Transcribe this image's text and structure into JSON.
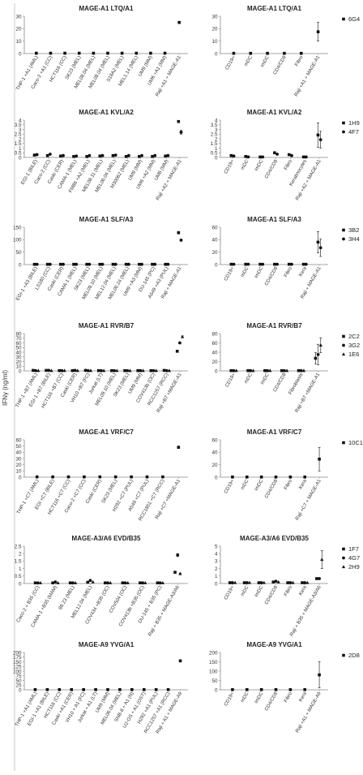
{
  "figure": {
    "ylabel": "IFNγ (ng/ml)"
  },
  "chart_data": [
    {
      "type": "scatter",
      "title": "MAGE-A1 LTQ/A1",
      "ylim": [
        0,
        30
      ],
      "yticks": [
        0,
        10,
        20,
        30
      ],
      "categories": [
        "THP-1 +A1 (AML)",
        "Caco-2 +A1 (CC)",
        "HCT116 (CC)",
        "SK23 (MEL)",
        "MEL08.04 (MEL)",
        "MEL08.04 (MEL)",
        "S18A2 (MEL)",
        "MEL1.14 (MEL)",
        "UM9 (MM)",
        "UM6 +A1 (MM)",
        "Raji +A1 + MAGE-A1"
      ],
      "series": [
        {
          "name": "6G4",
          "marker": "square",
          "values": [
            0.3,
            0.3,
            0.3,
            0.3,
            0.3,
            0.3,
            0.3,
            0.3,
            0.3,
            0.3,
            25
          ],
          "errors": [
            0,
            0,
            0,
            0,
            0,
            0,
            0,
            0,
            0,
            0,
            0.8
          ]
        }
      ]
    },
    {
      "type": "scatter",
      "title": "MAGE-A1 LTQ/A1",
      "ylim": [
        0,
        30
      ],
      "yticks": [
        0,
        10,
        20,
        30
      ],
      "categories": [
        "CD19+",
        "mDC",
        "imDC",
        "CD4/CD8",
        "Fibro",
        "Raji +A1 + MAGE-A1"
      ],
      "series": [
        {
          "name": "6G4",
          "marker": "square",
          "values": [
            0.2,
            0.2,
            0.2,
            0.2,
            0.2,
            17.5
          ],
          "errors": [
            0,
            0,
            0,
            0,
            0,
            7.5
          ]
        }
      ],
      "legend": [
        "6G4"
      ]
    },
    {
      "type": "scatter",
      "title": "MAGE-A1 KVL/A2",
      "ylim": [
        0,
        4
      ],
      "yticks": [
        0,
        0.5,
        1,
        1.5,
        2,
        2.5,
        3,
        3.5,
        4
      ],
      "categories": [
        "EGI-1 (BILE)",
        "Caco-2 (CC)",
        "Caski (CER)",
        "CAMA-1 (MEL)",
        "FM86 +A2 (MEL)",
        "MEL08.11 (MEL)",
        "MEL06.04 (MEL)",
        "M30062 (MEL)",
        "UM9 (MM)",
        "UM6 +A2 (MM)",
        "UM6 (MM)",
        "Raji +A2 + MAGE-A1"
      ],
      "series": [
        {
          "name": "1H9",
          "marker": "square",
          "values": [
            0.25,
            0.2,
            0.15,
            0.1,
            0.1,
            0.15,
            0.2,
            0.1,
            0.1,
            0.1,
            0.15,
            3.85
          ],
          "errors": [
            0,
            0,
            0,
            0,
            0,
            0,
            0,
            0,
            0,
            0,
            0,
            0.1
          ]
        },
        {
          "name": "4F7",
          "marker": "circle",
          "values": [
            0.3,
            0.35,
            0.2,
            0.15,
            0.2,
            0.2,
            0.25,
            0.2,
            0.2,
            0.2,
            0.2,
            2.7
          ],
          "errors": [
            0,
            0,
            0,
            0,
            0,
            0,
            0,
            0,
            0,
            0,
            0,
            0.2
          ]
        }
      ]
    },
    {
      "type": "scatter",
      "title": "MAGE-A1 KVL/A2",
      "ylim": [
        0,
        4
      ],
      "yticks": [
        0,
        0.5,
        1,
        1.5,
        2,
        2.5,
        3,
        3.5,
        4
      ],
      "categories": [
        "CD19+",
        "mDC",
        "imDC",
        "CD4/CD8",
        "Fibro",
        "Keratinocytes",
        "Raji +A2 + MAGE-A1"
      ],
      "series": [
        {
          "name": "1H9",
          "marker": "square",
          "values": [
            0.2,
            0.1,
            0.05,
            0.5,
            0.3,
            0.05,
            2.4
          ],
          "errors": [
            0,
            0,
            0,
            0,
            0,
            0,
            1.3
          ]
        },
        {
          "name": "4F7",
          "marker": "circle",
          "values": [
            0.15,
            0.05,
            0.05,
            0.35,
            0.2,
            0.05,
            1.9
          ],
          "errors": [
            0,
            0,
            0,
            0,
            0,
            0,
            0.9
          ]
        }
      ],
      "legend": [
        "1H9",
        "4F7"
      ]
    },
    {
      "type": "scatter",
      "title": "MAGE-A1 SLF/A3",
      "ylim": [
        0,
        150
      ],
      "yticks": [
        0,
        50,
        100,
        150
      ],
      "categories": [
        "EGI-1 +A3 (BILE)",
        "LS180 (CC)",
        "Caski (CER)",
        "CAMA-1 (MEL)",
        "SK23 (MEL)",
        "MEL09.10 (MEL)",
        "MEL12.04 (MEL)",
        "MEL06.24 (MEL)",
        "UM9 +A3 (MM)",
        "DU-145 (PC)",
        "A549 +A3 (PUL)",
        "Raji + MAGE-A1"
      ],
      "series": [
        {
          "name": "3B2",
          "marker": "square",
          "values": [
            1,
            1,
            1,
            1,
            1,
            1,
            1,
            1,
            1,
            1,
            1,
            128
          ],
          "errors": [
            0,
            0,
            0,
            0,
            0,
            0,
            0,
            0,
            0,
            0,
            0,
            5
          ]
        },
        {
          "name": "3H4",
          "marker": "circle",
          "values": [
            1,
            1,
            1,
            1,
            1,
            1,
            1,
            1,
            1,
            1,
            1,
            98
          ],
          "errors": [
            0,
            0,
            0,
            0,
            0,
            0,
            0,
            0,
            0,
            0,
            0,
            3
          ]
        }
      ]
    },
    {
      "type": "scatter",
      "title": "MAGE-A1 SLF/A3",
      "ylim": [
        0,
        60
      ],
      "yticks": [
        0,
        20,
        40,
        60
      ],
      "categories": [
        "CD19+",
        "mDC",
        "imDC",
        "CD4/CD8",
        "Fibro",
        "Kera",
        "Raji + MAGE-A1"
      ],
      "series": [
        {
          "name": "3B2",
          "marker": "square",
          "values": [
            0.5,
            0.5,
            0.5,
            0.5,
            0.5,
            0.5,
            36
          ],
          "errors": [
            0,
            0,
            0,
            0,
            0,
            0,
            17
          ]
        },
        {
          "name": "3H4",
          "marker": "circle",
          "values": [
            0.5,
            0.5,
            0.5,
            0.5,
            0.5,
            0.5,
            27
          ],
          "errors": [
            0,
            0,
            0,
            0,
            0,
            0,
            14
          ]
        }
      ],
      "legend": [
        "3B2",
        "3H4"
      ]
    },
    {
      "type": "scatter",
      "title": "MAGE-A1 RVR/B7",
      "ylim": [
        0,
        80
      ],
      "yticks": [
        0,
        10,
        20,
        30,
        40,
        50,
        60,
        70,
        80
      ],
      "categories": [
        "THP-1 +B7 (AML)",
        "EGI-1 +B7 (BILE)",
        "HCT116 +B7 (CC)",
        "Caski (CER)",
        "VH10 +B7 (FC)",
        "Jurkat (LT)",
        "MEL09.10 (MEL)",
        "SK23 (MEL)",
        "UM9 (MM)",
        "COV413b (OC)",
        "RCC1257 (RCC)",
        "Raji +B7 +MAGE-A1"
      ],
      "series": [
        {
          "name": "2C2",
          "marker": "square",
          "values": [
            1,
            1,
            0.5,
            0.5,
            1,
            0.5,
            0.5,
            0.5,
            0.5,
            0.5,
            1,
            42
          ],
          "errors": [
            0,
            0,
            0,
            0,
            0,
            0,
            0,
            0,
            0,
            0,
            0,
            2
          ]
        },
        {
          "name": "3G2",
          "marker": "circle",
          "values": [
            0.5,
            1,
            0.5,
            1,
            0.5,
            0.5,
            0.5,
            0.5,
            0.5,
            0.5,
            0.5,
            60
          ],
          "errors": [
            0,
            0,
            0,
            0,
            0,
            0,
            0,
            0,
            0,
            0,
            0,
            2
          ]
        },
        {
          "name": "1E6",
          "marker": "triangle",
          "values": [
            0.5,
            0.5,
            0.5,
            0.5,
            0.5,
            0.5,
            0.5,
            0.5,
            0.5,
            0.5,
            0.5,
            73
          ],
          "errors": [
            0,
            0,
            0,
            0,
            0,
            0,
            0,
            0,
            0,
            0,
            0,
            2
          ]
        }
      ]
    },
    {
      "type": "scatter",
      "title": "MAGE-A1 RVR/B7",
      "ylim": [
        0,
        80
      ],
      "yticks": [
        0,
        20,
        40,
        60,
        80
      ],
      "categories": [
        "CD19+",
        "mDC",
        "imDC",
        "CD4/CD8",
        "Fibroblasts",
        "Raji +B7 +MAGE-A1"
      ],
      "series": [
        {
          "name": "2C2",
          "marker": "square",
          "values": [
            0.5,
            0.5,
            0.5,
            0.5,
            0.5,
            27
          ],
          "errors": [
            0,
            0,
            0,
            0,
            0,
            12
          ]
        },
        {
          "name": "3G2",
          "marker": "circle",
          "values": [
            0.5,
            0.5,
            0.5,
            0.5,
            0.5,
            35
          ],
          "errors": [
            0,
            0,
            0,
            0,
            0,
            22
          ]
        },
        {
          "name": "1E6",
          "marker": "triangle",
          "values": [
            0.5,
            0.5,
            0.5,
            0.5,
            0.5,
            55
          ],
          "errors": [
            0,
            0,
            0,
            0,
            0,
            16
          ]
        }
      ],
      "legend": [
        "2C2",
        "3G2",
        "1E6"
      ]
    },
    {
      "type": "scatter",
      "title": "MAGE-A1 VRF/C7",
      "ylim": [
        0,
        60
      ],
      "yticks": [
        0,
        10,
        20,
        30,
        40,
        50,
        60
      ],
      "categories": [
        "THP-1 +C7 (AML)",
        "EGI +C7 (BILE)",
        "HCT116 +C7 (CC)",
        "Caco-2 +C7 (CC)",
        "Caski (CER)",
        "SK23 (MEL)",
        "H292 +C7 (PUL)",
        "A549 +C7 (PUL)",
        "RCC1851 +C7 (RCC)",
        "Raji +C7 +MAGE-A1"
      ],
      "series": [
        {
          "name": "10C1",
          "marker": "square",
          "values": [
            0.5,
            0.5,
            0.5,
            0.5,
            0.5,
            0.5,
            0.5,
            0.5,
            0.5,
            48
          ],
          "errors": [
            0,
            0,
            0,
            0,
            0,
            0,
            0,
            0,
            0,
            2
          ]
        }
      ]
    },
    {
      "type": "scatter",
      "title": "MAGE-A1 VRF/C7",
      "ylim": [
        0,
        60
      ],
      "yticks": [
        0,
        20,
        40,
        60
      ],
      "categories": [
        "CD19+",
        "mDC",
        "imDC",
        "CD4/CD8",
        "Fibro",
        "Kera",
        "Raji +C7 + MAGE-A1"
      ],
      "series": [
        {
          "name": "10C1",
          "marker": "square",
          "values": [
            0.3,
            0.3,
            0.3,
            0.3,
            0.3,
            0.3,
            29
          ],
          "errors": [
            0,
            0,
            0,
            0,
            0,
            0,
            19
          ]
        }
      ],
      "legend": [
        "10C1"
      ]
    },
    {
      "type": "scatter",
      "title": "MAGE-A3/A6 EVD/B35",
      "ylim": [
        0,
        2.5
      ],
      "yticks": [
        0,
        0.5,
        1,
        1.5,
        2,
        2.5
      ],
      "categories": [
        "Caco-2 + B35 (CC)",
        "CAMA-1 +B35 (MAM)",
        "88.23 (MEL)",
        "MEL12.04 (MEL)",
        "COV434 +B35 (OC)",
        "COV504 (OC)",
        "COV413b +B35 (OC)",
        "DU-145 + B35 (PC)",
        "Raji + B35 + MAGE-A3/A6"
      ],
      "series": [
        {
          "name": "1F7",
          "marker": "square",
          "values": [
            0.04,
            0.04,
            0.04,
            0.08,
            0.04,
            0.04,
            0.04,
            0.04,
            0.75
          ],
          "errors": [
            0,
            0,
            0,
            0,
            0,
            0,
            0,
            0,
            0.05
          ]
        },
        {
          "name": "4G7",
          "marker": "circle",
          "values": [
            0.04,
            0.1,
            0.04,
            0.2,
            0.04,
            0.04,
            0.04,
            0.04,
            1.9
          ],
          "errors": [
            0,
            0,
            0,
            0,
            0,
            0,
            0,
            0,
            0.1
          ]
        },
        {
          "name": "2H9",
          "marker": "triangle",
          "values": [
            0.04,
            0.04,
            0.04,
            0.1,
            0.04,
            0.04,
            0.04,
            0.04,
            0.65
          ],
          "errors": [
            0,
            0,
            0,
            0,
            0,
            0,
            0,
            0,
            0.05
          ]
        }
      ]
    },
    {
      "type": "scatter",
      "title": "MAGE-A3/A6 EVD/B35",
      "ylim": [
        0,
        5
      ],
      "yticks": [
        0,
        1,
        2,
        3,
        4,
        5
      ],
      "categories": [
        "CD19+",
        "mDC",
        "imDC",
        "CD4/CD8",
        "Fibro",
        "Kera",
        "Raji + B35 + MAGE-A3/A6"
      ],
      "series": [
        {
          "name": "1F7",
          "marker": "square",
          "values": [
            0.1,
            0.1,
            0.1,
            0.2,
            0.1,
            0.1,
            0.65
          ],
          "errors": [
            0,
            0,
            0,
            0,
            0,
            0,
            0.05
          ]
        },
        {
          "name": "4G7",
          "marker": "circle",
          "values": [
            0.1,
            0.1,
            0.1,
            0.3,
            0.1,
            0.1,
            0.65
          ],
          "errors": [
            0,
            0,
            0,
            0,
            0,
            0,
            0.05
          ]
        },
        {
          "name": "2H9",
          "marker": "triangle",
          "values": [
            0.1,
            0.1,
            0.1,
            0.2,
            0.1,
            0.1,
            3.2
          ],
          "errors": [
            0,
            0,
            0,
            0,
            0,
            0,
            1.2
          ]
        }
      ],
      "legend": [
        "1F7",
        "4G7",
        "2H9"
      ]
    },
    {
      "type": "scatter",
      "title": "MAGE-A9 YVG/A1",
      "ylim": [
        0,
        200
      ],
      "yticks": [
        0,
        25,
        50,
        75,
        100,
        125,
        150,
        175,
        200
      ],
      "categories": [
        "THP-1 +A1 (AML)",
        "EGI-1 +A1 (BILE)",
        "HCT116 (CC)",
        "Caski +A1 (CER)",
        "VH10 + A1 (FC)",
        "Jurkat + A1 (LT)",
        "UM9 (MM)",
        "MEL06.04 (MEL)",
        "SNB-8 + A1 (N)",
        "U2-OS + A1 (OST)",
        "H292 +A1 (PUL)",
        "RCC1257 +A1 (RCC)",
        "Raji + A1 + MAGE-A9"
      ],
      "series": [
        {
          "name": "2D8",
          "marker": "square",
          "values": [
            1,
            1,
            1,
            1,
            1,
            1,
            1,
            1,
            1,
            1,
            1,
            1,
            155
          ],
          "errors": [
            0,
            0,
            0,
            0,
            0,
            0,
            0,
            0,
            0,
            0,
            0,
            0,
            4
          ]
        }
      ]
    },
    {
      "type": "scatter",
      "title": "MAGE-A9 YVG/A1",
      "ylim": [
        0,
        200
      ],
      "yticks": [
        0,
        50,
        100,
        150,
        200
      ],
      "categories": [
        "CD19+",
        "mDC",
        "imDC",
        "CD4/CD8",
        "Fibro",
        "Kera",
        "Raji +A1 + MAGE-A9"
      ],
      "series": [
        {
          "name": "2D8",
          "marker": "square",
          "values": [
            1,
            1,
            1,
            1,
            1,
            1,
            80
          ],
          "errors": [
            0,
            0,
            0,
            0,
            0,
            0,
            70
          ]
        }
      ],
      "legend": [
        "2D8"
      ]
    }
  ]
}
